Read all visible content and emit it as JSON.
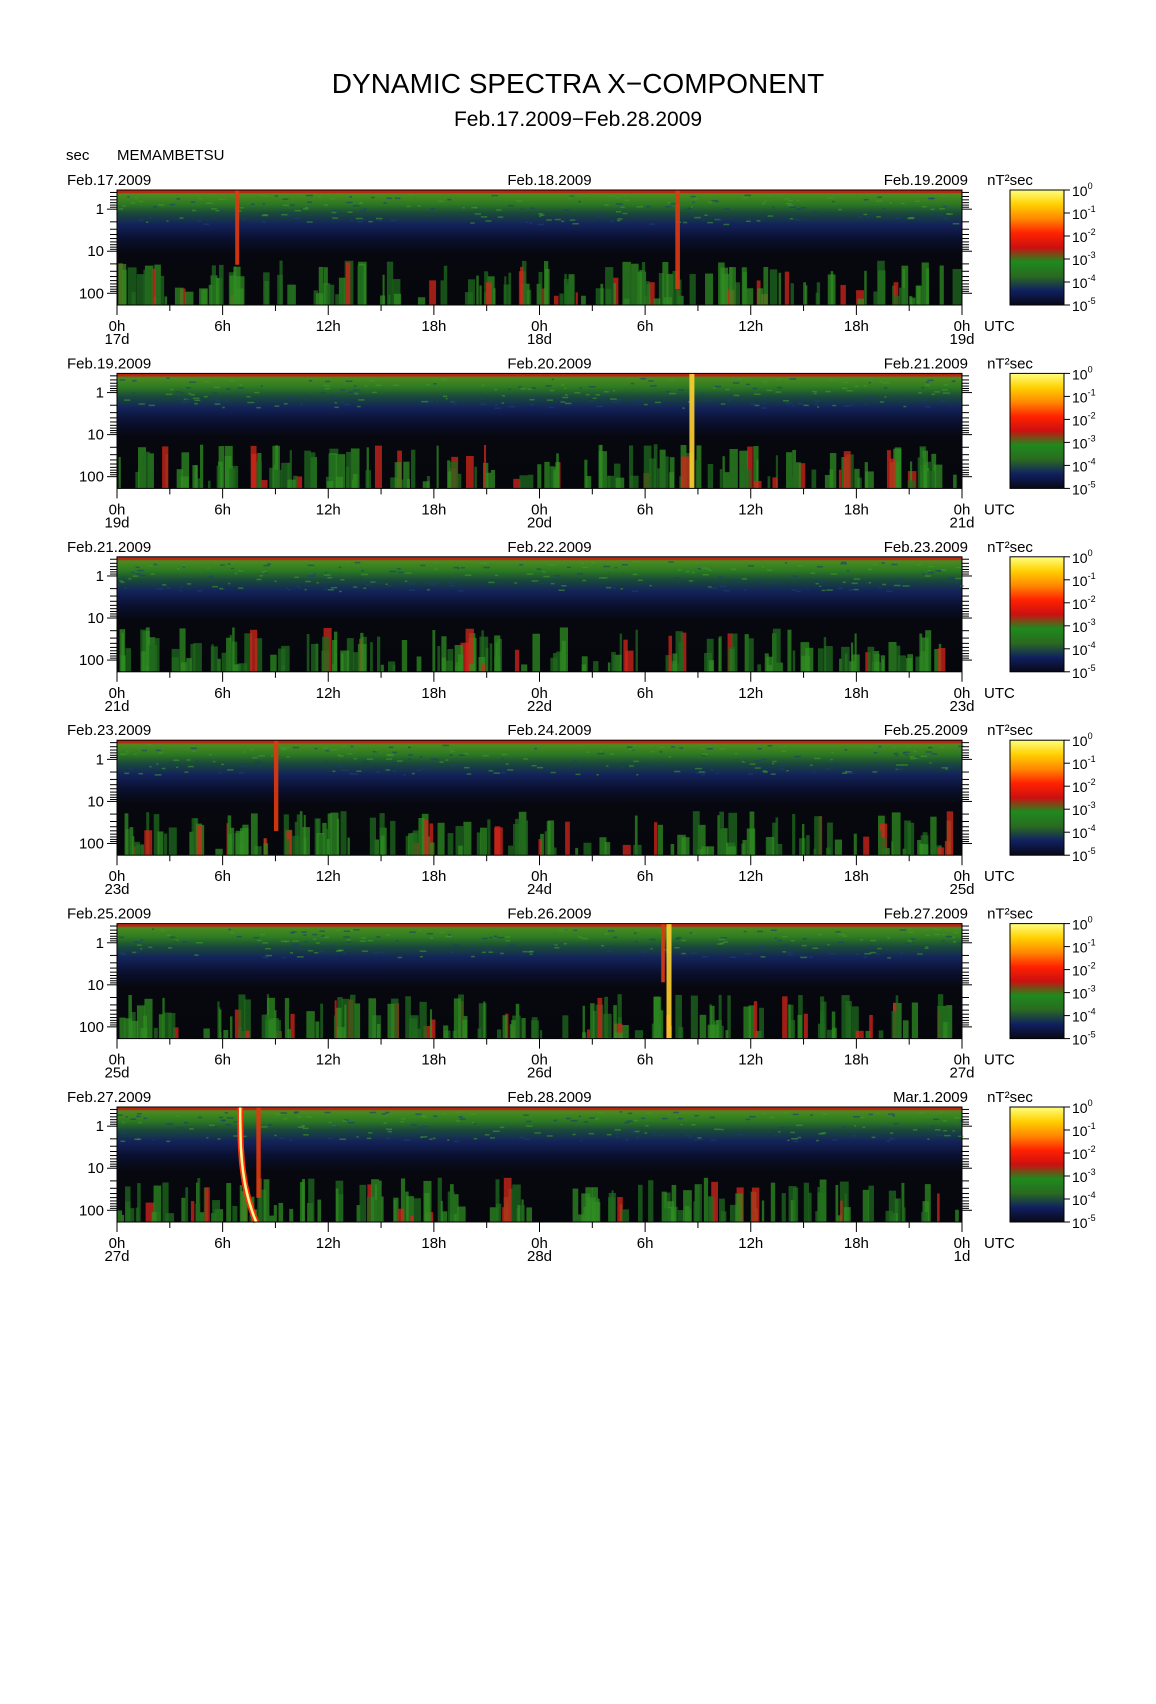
{
  "page": {
    "title": "DYNAMIC SPECTRA X−COMPONENT",
    "subtitle": "Feb.17.2009−Feb.28.2009",
    "unit_label": "sec",
    "station": "MEMAMBETSU"
  },
  "chart_data": {
    "type": "heatmap",
    "station": "MEMAMBETSU",
    "component": "X",
    "y_axis": {
      "label": "sec",
      "scale": "log",
      "ticks": [
        1,
        10,
        100
      ],
      "reversed": true
    },
    "x_axis": {
      "label": "UTC",
      "hour_ticks": [
        "0h",
        "6h",
        "12h",
        "18h",
        "0h",
        "6h",
        "12h",
        "18h",
        "0h"
      ]
    },
    "colorbar": {
      "unit": "nT²sec",
      "scale": "log",
      "ticks": [
        {
          "base": "10",
          "exp": "0"
        },
        {
          "base": "10",
          "exp": "-1"
        },
        {
          "base": "10",
          "exp": "-2"
        },
        {
          "base": "10",
          "exp": "-3"
        },
        {
          "base": "10",
          "exp": "-4"
        },
        {
          "base": "10",
          "exp": "-5"
        }
      ],
      "colors": [
        "#ffff80",
        "#ffd000",
        "#ff8800",
        "#ff2200",
        "#cc1010",
        "#1e8a1e",
        "#2a6a20",
        "#102060",
        "#080818"
      ]
    },
    "panels": [
      {
        "left_date": "Feb.17.2009",
        "mid_date": "Feb.18.2009",
        "right_date": "Feb.19.2009",
        "day_labels": [
          "17d",
          "18d",
          "19d"
        ],
        "events": [
          {
            "hour": 6.8,
            "strength": 0.5
          },
          {
            "hour": 31.8,
            "strength": 0.8
          }
        ]
      },
      {
        "left_date": "Feb.19.2009",
        "mid_date": "Feb.20.2009",
        "right_date": "Feb.21.2009",
        "day_labels": [
          "19d",
          "20d",
          "21d"
        ],
        "events": [
          {
            "hour": 32.6,
            "strength": 1.0
          }
        ]
      },
      {
        "left_date": "Feb.21.2009",
        "mid_date": "Feb.22.2009",
        "right_date": "Feb.23.2009",
        "day_labels": [
          "21d",
          "22d",
          "23d"
        ],
        "events": []
      },
      {
        "left_date": "Feb.23.2009",
        "mid_date": "Feb.24.2009",
        "right_date": "Feb.25.2009",
        "day_labels": [
          "23d",
          "24d",
          "25d"
        ],
        "events": [
          {
            "hour": 9.0,
            "strength": 0.7
          }
        ]
      },
      {
        "left_date": "Feb.25.2009",
        "mid_date": "Feb.26.2009",
        "right_date": "Feb.27.2009",
        "day_labels": [
          "25d",
          "26d",
          "27d"
        ],
        "events": [
          {
            "hour": 31.3,
            "strength": 1.0
          },
          {
            "hour": 31.0,
            "strength": 0.3
          }
        ]
      },
      {
        "left_date": "Feb.27.2009",
        "mid_date": "Feb.28.2009",
        "right_date": "Mar.1.2009",
        "day_labels": [
          "27d",
          "28d",
          "1d"
        ],
        "events": [
          {
            "hour": 7.0,
            "strength": 1.0,
            "dispersive": true
          },
          {
            "hour": 8.0,
            "strength": 0.7
          }
        ]
      }
    ]
  }
}
